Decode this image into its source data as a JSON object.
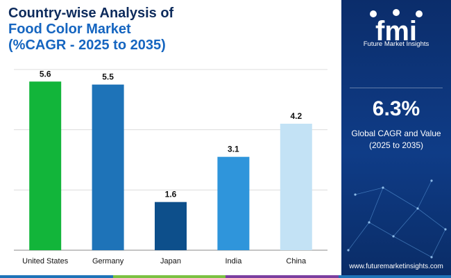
{
  "header": {
    "line1": "Country-wise Analysis of",
    "line2": "Food Color Market",
    "line3": "(%CAGR - 2025 to 2035)"
  },
  "chart_data": {
    "type": "bar",
    "categories": [
      "United States",
      "Germany",
      "Japan",
      "India",
      "China"
    ],
    "values": [
      5.6,
      5.5,
      1.6,
      3.1,
      4.2
    ],
    "colors": [
      "#12b53a",
      "#1e73b8",
      "#0d4f8b",
      "#2f95db",
      "#c3e2f5"
    ],
    "ylim": [
      0,
      6
    ],
    "grid": true,
    "value_labels": [
      "5.6",
      "5.5",
      "1.6",
      "3.1",
      "4.2"
    ]
  },
  "side_panel": {
    "logo_text": "fmi",
    "logo_subtitle": "Future Market Insights",
    "highlight_value": "6.3%",
    "highlight_label_line1": "Global CAGR and Value",
    "highlight_label_line2": "(2025 to 2035)",
    "website": "www.futuremarketinsights.com",
    "background_color": "#0f3c87"
  },
  "bottom_strip_colors": [
    "#1e73b8",
    "#7bc142",
    "#7b3fa0",
    "#1e73b8"
  ]
}
